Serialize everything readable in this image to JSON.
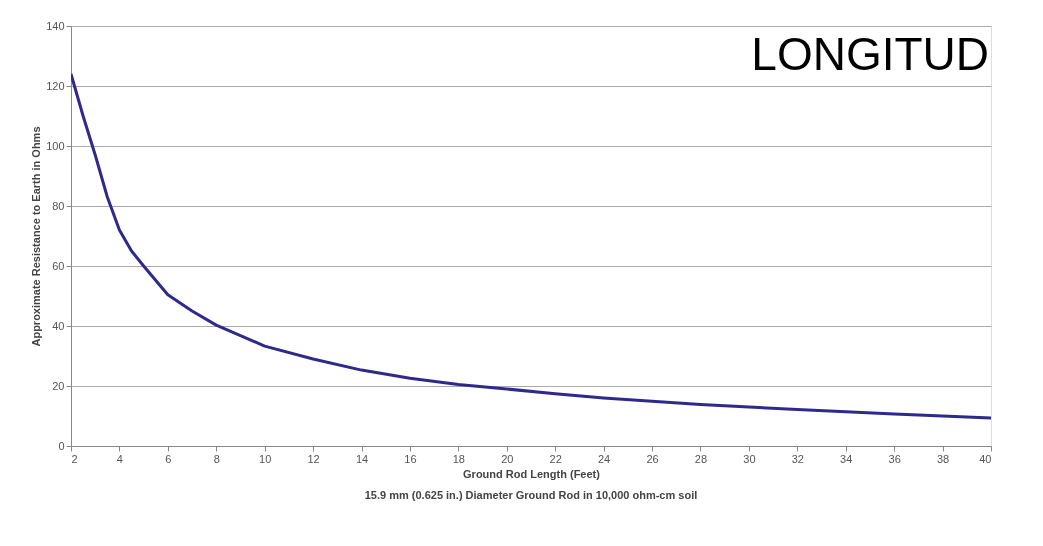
{
  "chart_data": {
    "type": "line",
    "xlabel": "Ground Rod Length (Feet)",
    "ylabel": "Approximate Resistance to Earth in Ohms",
    "annotations": [
      "LONGITUD",
      "15.9 mm (0.625 in.) Diameter Ground Rod in 10,000 ohm-cm soil"
    ],
    "x": [
      2,
      2.5,
      3,
      3.5,
      4,
      4.5,
      5,
      6,
      7,
      8,
      10,
      12,
      14,
      16,
      18,
      20,
      22,
      24,
      26,
      28,
      30,
      32,
      34,
      36,
      38,
      40
    ],
    "series": [
      {
        "color": "#2e2a8c",
        "values": [
          124,
          110,
          97,
          83,
          72,
          65,
          60,
          50.4,
          45,
          40.3,
          33.3,
          29,
          25.3,
          22.6,
          20.5,
          19,
          17.4,
          16,
          14.9,
          13.8,
          13,
          12.2,
          11.4,
          10.7,
          10,
          9.3
        ]
      }
    ],
    "xlim": [
      2,
      40
    ],
    "xticks": [
      2,
      4,
      6,
      8,
      10,
      12,
      14,
      16,
      18,
      20,
      22,
      24,
      26,
      28,
      30,
      32,
      34,
      36,
      38,
      40
    ],
    "ylim": [
      0,
      140
    ],
    "yticks": [
      0,
      20,
      40,
      60,
      80,
      100,
      120,
      140
    ],
    "grid": "y",
    "marker": "none",
    "line_style": "solid"
  }
}
